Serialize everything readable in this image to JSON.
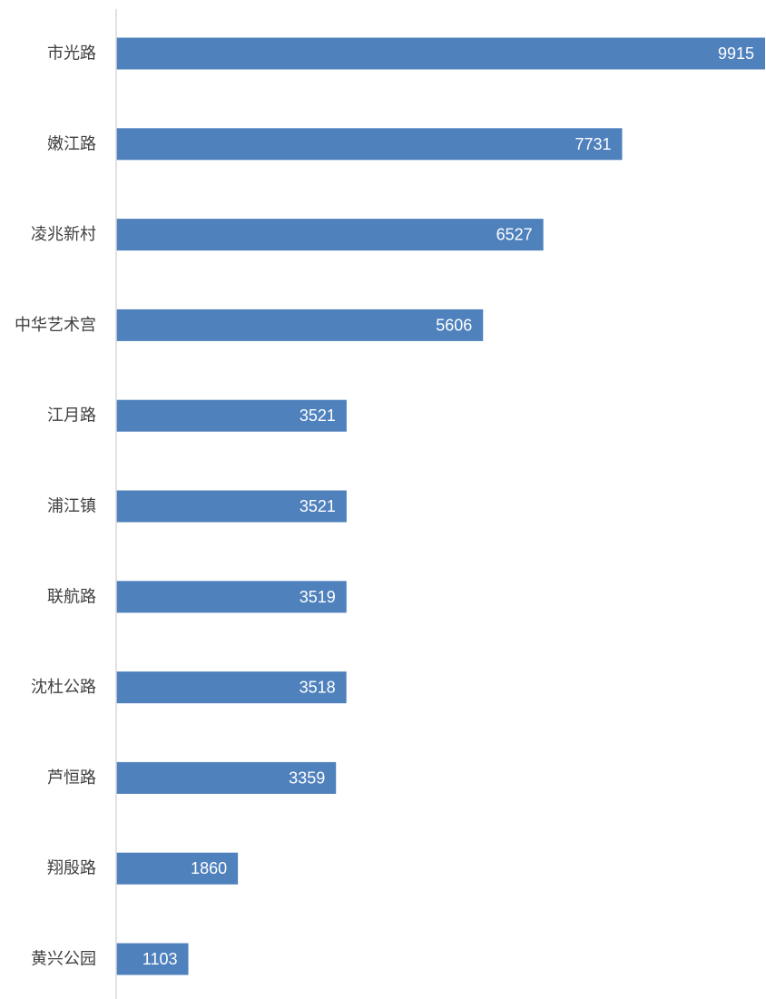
{
  "chart_data": {
    "type": "bar",
    "orientation": "horizontal",
    "categories": [
      "市光路",
      "嫩江路",
      "凌兆新村",
      "中华艺术宫",
      "江月路",
      "浦江镇",
      "联航路",
      "沈杜公路",
      "芦恒路",
      "翔殷路",
      "黄兴公园"
    ],
    "values": [
      9915,
      7731,
      6527,
      5606,
      3521,
      3521,
      3519,
      3518,
      3359,
      1860,
      1103
    ],
    "value_labels": [
      "9915",
      "7731",
      "6527",
      "5606",
      "3521",
      "3521",
      "3519",
      "3518",
      "3359",
      "1860",
      "1103"
    ],
    "xlim": [
      0,
      9915
    ],
    "grid": false,
    "legend": "none",
    "data_labels": "inside-end"
  },
  "colors": {
    "bar": "#4f81bd",
    "axis": "#d9d9d9",
    "category_text": "#404040",
    "value_text": "#ffffff"
  }
}
